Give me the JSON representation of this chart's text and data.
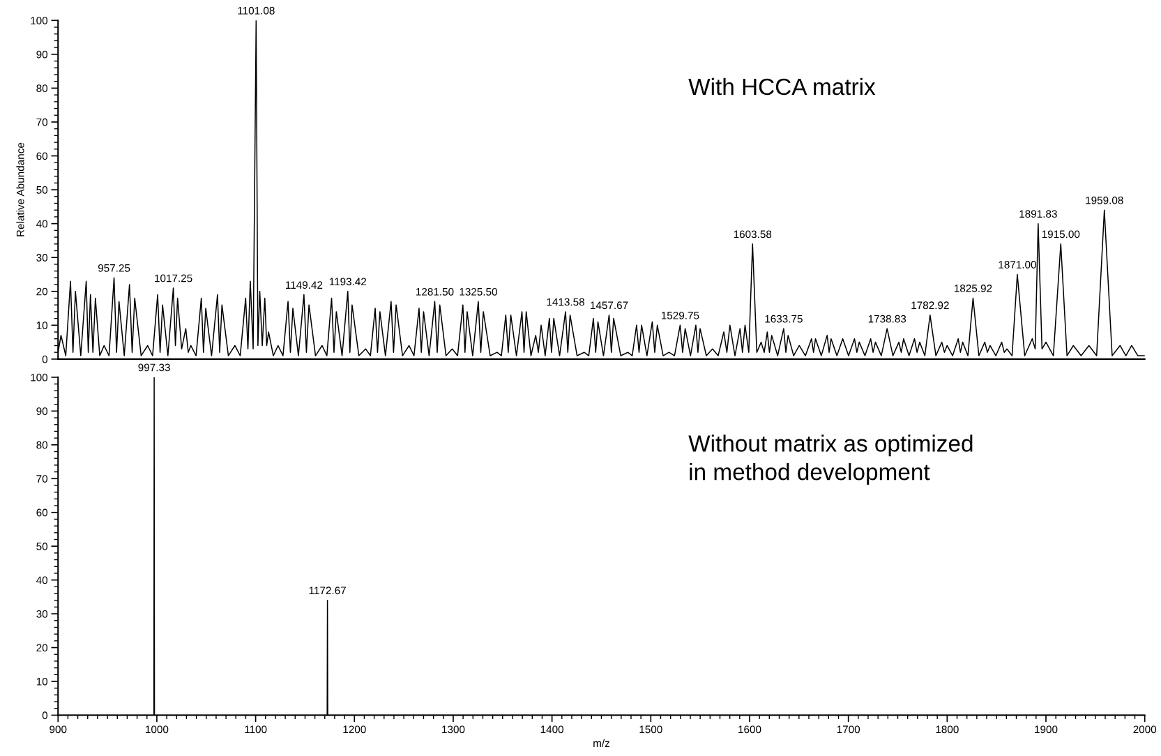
{
  "chart_data": [
    {
      "type": "line",
      "ylabel": "Relative Abundance",
      "xlim": [
        900,
        2000
      ],
      "ylim": [
        0,
        100
      ],
      "yticks": [
        0,
        10,
        20,
        30,
        40,
        50,
        60,
        70,
        80,
        90,
        100
      ],
      "tick_labels": "y",
      "grid": false,
      "series": [
        {
          "color": "#000000",
          "x": [
            900,
            903,
            907.8,
            912.6,
            915.1,
            917.6,
            923,
            928.5,
            930.6,
            932.8,
            935.3,
            937.8,
            942.2,
            946.6,
            951.6,
            956.7,
            959.2,
            961.7,
            967,
            972.3,
            975,
            977.6,
            984.1,
            990.7,
            995.7,
            1000.8,
            1003.3,
            1005.8,
            1011.2,
            1016.7,
            1018.8,
            1021,
            1025.1,
            1029.3,
            1031.8,
            1034.4,
            1039.7,
            1045,
            1047.2,
            1049.5,
            1055.4,
            1061.4,
            1063.6,
            1065.9,
            1072.4,
            1079,
            1084.4,
            1089.9,
            1092.2,
            1094.6,
            1097.5,
            1100.5,
            1102.3,
            1104.2,
            1106.7,
            1109.3,
            1111.2,
            1113.1,
            1117.9,
            1122.7,
            1127.7,
            1132.8,
            1135.2,
            1137.7,
            1143.3,
            1148.9,
            1151.4,
            1154,
            1160.6,
            1167.3,
            1172.1,
            1176.9,
            1179.3,
            1181.7,
            1187.5,
            1193.3,
            1195.4,
            1197.6,
            1204.5,
            1211.4,
            1216.2,
            1221,
            1223.4,
            1225.8,
            1231.4,
            1237.1,
            1239.6,
            1242.2,
            1248.7,
            1255.3,
            1260.3,
            1265.4,
            1267.7,
            1270,
            1275.6,
            1281.3,
            1283.8,
            1286.4,
            1292.7,
            1299,
            1304.4,
            1309.8,
            1311.9,
            1314.1,
            1319.7,
            1325.4,
            1327.9,
            1330.5,
            1337.4,
            1344.4,
            1348.8,
            1353.2,
            1355.7,
            1358.3,
            1364,
            1369.6,
            1371.7,
            1373.9,
            1378.7,
            1383.5,
            1386.2,
            1389,
            1393.1,
            1397.3,
            1399.5,
            1401.8,
            1407.7,
            1413.7,
            1416,
            1418.3,
            1425.4,
            1432.6,
            1437.2,
            1441.9,
            1444.2,
            1446.5,
            1452.1,
            1457.8,
            1460.1,
            1462.4,
            1469.6,
            1476.8,
            1481.2,
            1485.6,
            1488.1,
            1490.7,
            1496.1,
            1501.5,
            1504,
            1506.6,
            1512.5,
            1518.4,
            1524,
            1529.7,
            1532.2,
            1534.8,
            1540.2,
            1545.6,
            1547.7,
            1549.9,
            1556.2,
            1562.5,
            1568.2,
            1573.9,
            1577,
            1580.1,
            1585.2,
            1590.3,
            1592.8,
            1595.4,
            1599.2,
            1603,
            1607.3,
            1611.7,
            1614.8,
            1617.9,
            1620.1,
            1622.4,
            1628.4,
            1634.5,
            1636.7,
            1639,
            1644.6,
            1650.3,
            1656.5,
            1662.7,
            1664.7,
            1666.7,
            1672.6,
            1678.5,
            1680.5,
            1682.5,
            1688.4,
            1694.3,
            1700.2,
            1706.2,
            1708.6,
            1711,
            1716.8,
            1722.6,
            1725,
            1727.4,
            1733.3,
            1739.2,
            1745.1,
            1751.1,
            1753.5,
            1755.9,
            1761.4,
            1766.9,
            1769.5,
            1772.2,
            1777.4,
            1782.7,
            1788.6,
            1794.6,
            1797.2,
            1799.9,
            1805.5,
            1811.2,
            1813.4,
            1815.7,
            1821,
            1826.2,
            1832.1,
            1838.1,
            1840.7,
            1843.4,
            1849.3,
            1855.2,
            1857.8,
            1860.5,
            1865.7,
            1871,
            1878.5,
            1886.1,
            1889.1,
            1892.1,
            1896,
            1900,
            1907.5,
            1915,
            1921.3,
            1927.7,
            1935.6,
            1943.5,
            1951.3,
            1959.1,
            1967,
            1975,
            1980.9,
            1986.8,
            1993,
            2000
          ],
          "values": [
            2,
            7,
            1,
            23,
            2,
            20,
            1,
            23,
            2,
            19,
            2,
            18,
            1,
            4,
            1,
            24,
            2,
            17,
            1,
            22,
            2,
            18,
            1,
            4,
            1,
            19,
            2,
            16,
            1,
            21,
            4,
            18,
            3,
            9,
            2,
            4,
            1,
            18,
            2,
            15,
            1,
            19,
            2,
            16,
            1,
            4,
            1,
            18,
            3,
            23,
            3,
            100,
            4,
            20,
            4,
            18,
            4,
            8,
            1,
            4,
            1,
            17,
            2,
            15,
            1,
            19,
            2,
            16,
            1,
            4,
            1,
            18,
            2,
            14,
            1,
            20,
            2,
            16,
            1,
            3,
            1,
            15,
            2,
            14,
            1,
            17,
            2,
            16,
            1,
            4,
            1,
            15,
            2,
            14,
            1,
            17,
            2,
            16,
            1,
            3,
            1,
            16,
            2,
            14,
            1,
            17,
            2,
            14,
            1,
            2,
            1,
            13,
            2,
            13,
            1,
            14,
            2,
            14,
            1,
            7,
            2,
            10,
            1,
            12,
            2,
            12,
            1,
            14,
            2,
            13,
            1,
            2,
            1,
            12,
            2,
            11,
            1,
            13,
            2,
            12,
            1,
            2,
            1,
            10,
            2,
            10,
            1,
            11,
            2,
            10,
            1,
            2,
            1,
            10,
            2,
            9,
            1,
            10,
            2,
            9,
            1,
            3,
            1,
            8,
            2,
            10,
            1,
            9,
            2,
            10,
            2,
            34,
            2,
            5,
            2,
            8,
            2,
            7,
            1,
            9,
            2,
            7,
            1,
            4,
            1,
            6,
            2,
            6,
            1,
            7,
            2,
            6,
            1,
            6,
            1,
            6,
            2,
            5,
            1,
            6,
            2,
            5,
            1,
            9,
            1,
            5,
            2,
            6,
            1,
            6,
            2,
            5,
            1,
            13,
            1,
            5,
            2,
            4,
            1,
            6,
            2,
            5,
            1,
            18,
            1,
            5,
            2,
            4,
            1,
            5,
            2,
            3,
            1,
            25,
            1,
            6,
            3,
            40,
            3,
            5,
            1,
            34,
            1,
            4,
            1,
            4,
            1,
            44,
            1,
            4,
            1,
            4,
            1,
            1
          ]
        }
      ],
      "annotations": [
        "With HCCA matrix",
        {
          "text": "1101.08",
          "x": 1100.5,
          "y": 100
        },
        {
          "text": "957.25",
          "x": 956.7,
          "y": 24
        },
        {
          "text": "1017.25",
          "x": 1016.7,
          "y": 21
        },
        {
          "text": "1149.42",
          "x": 1148.9,
          "y": 19
        },
        {
          "text": "1193.42",
          "x": 1193.3,
          "y": 20
        },
        {
          "text": "1281.50",
          "x": 1281.3,
          "y": 17
        },
        {
          "text": "1325.50",
          "x": 1325.4,
          "y": 17
        },
        {
          "text": "1413.58",
          "x": 1413.7,
          "y": 14
        },
        {
          "text": "1457.67",
          "x": 1457.8,
          "y": 13
        },
        {
          "text": "1529.75",
          "x": 1529.7,
          "y": 10
        },
        {
          "text": "1603.58",
          "x": 1603,
          "y": 34
        },
        {
          "text": "1633.75",
          "x": 1634.5,
          "y": 9
        },
        {
          "text": "1738.83",
          "x": 1739.2,
          "y": 9
        },
        {
          "text": "1782.92",
          "x": 1782.7,
          "y": 13
        },
        {
          "text": "1825.92",
          "x": 1826.2,
          "y": 18
        },
        {
          "text": "1871.00",
          "x": 1871,
          "y": 25
        },
        {
          "text": "1891.83",
          "x": 1892.1,
          "y": 40
        },
        {
          "text": "1915.00",
          "x": 1915,
          "y": 34
        },
        {
          "text": "1959.08",
          "x": 1959.1,
          "y": 44
        }
      ]
    },
    {
      "type": "line",
      "xlabel": "m/z",
      "xlim": [
        900,
        2000
      ],
      "xticks": [
        900,
        1000,
        1100,
        1200,
        1300,
        1400,
        1500,
        1600,
        1700,
        1800,
        1900,
        2000
      ],
      "ylim": [
        0,
        100
      ],
      "yticks": [
        0,
        10,
        20,
        30,
        40,
        50,
        60,
        70,
        80,
        90,
        100
      ],
      "grid": false,
      "series": [
        {
          "color": "#000000",
          "x": [
            900,
            997.0,
            997.3,
            997.6,
            1172.4,
            1172.7,
            1173.0,
            2000
          ],
          "values": [
            0,
            0,
            100,
            0,
            0,
            34,
            0,
            0
          ]
        }
      ],
      "annotations": [
        "Without matrix as optimized\nin method development",
        {
          "text": "997.33",
          "x": 997.3,
          "y": 100
        },
        {
          "text": "1172.67",
          "x": 1172.7,
          "y": 34
        }
      ]
    }
  ]
}
